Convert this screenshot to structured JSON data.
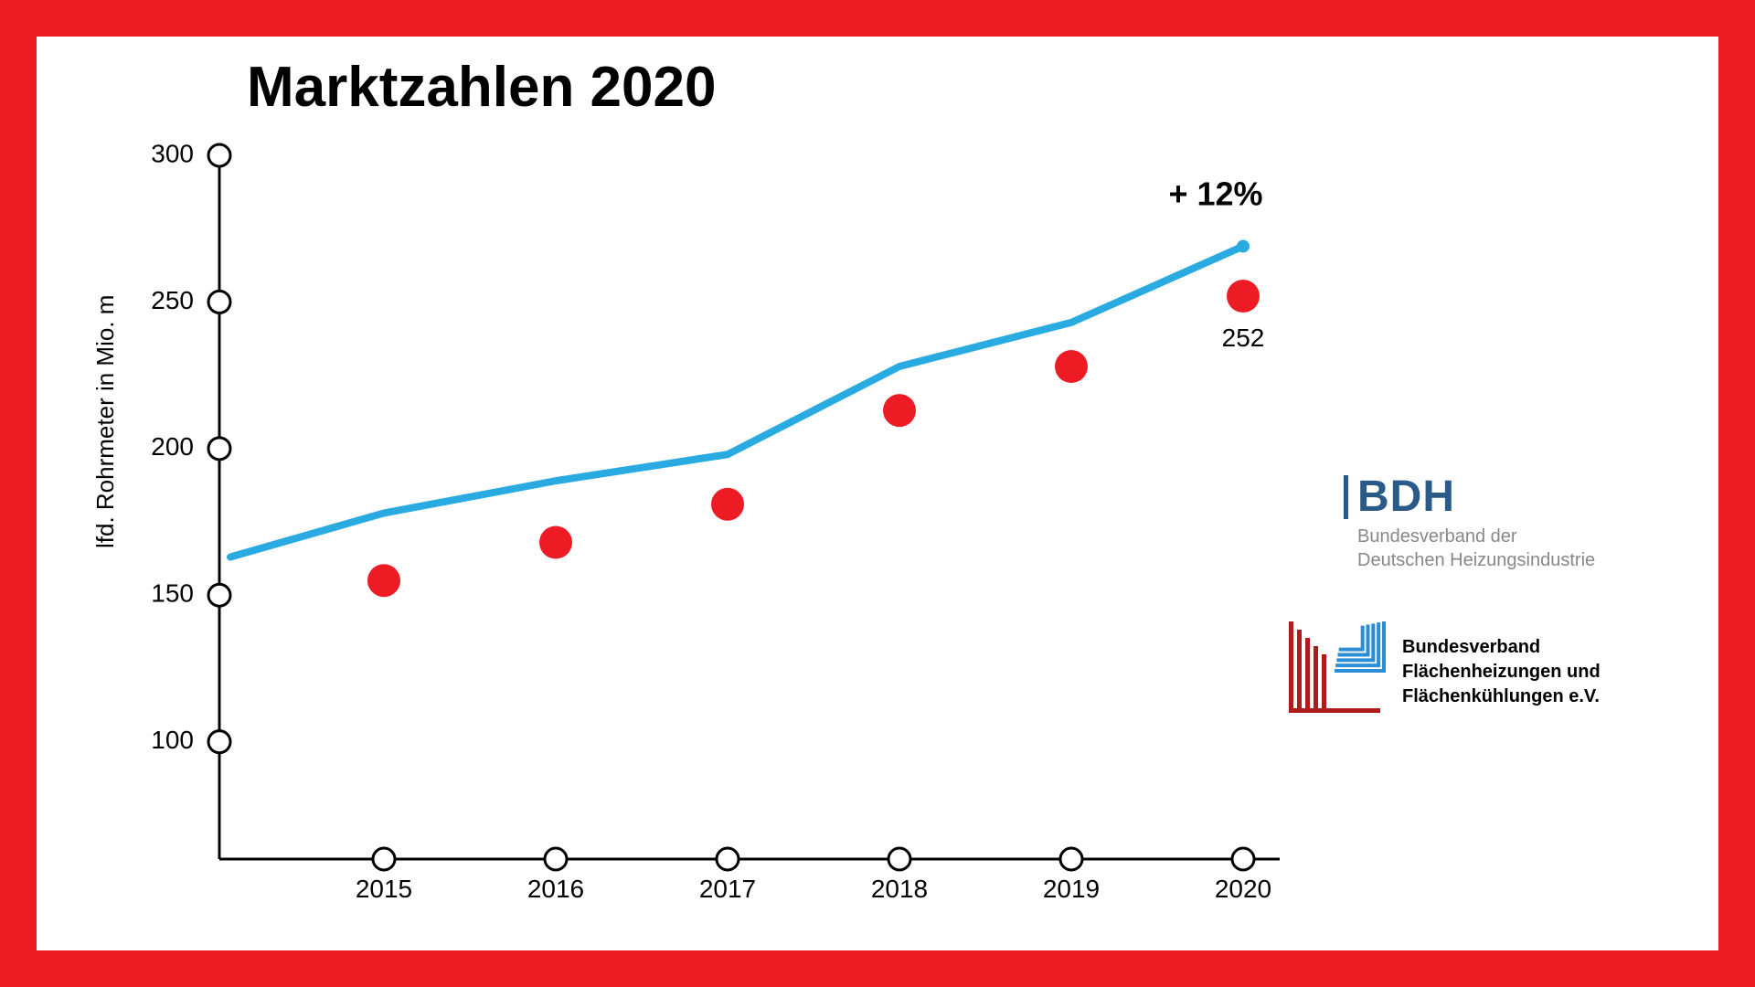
{
  "chart": {
    "type": "line-scatter",
    "title": "Marktzahlen 2020",
    "title_fontsize": 62,
    "title_color": "#000000",
    "ylabel": "lfd. Rohrmeter in Mio. m",
    "label_fontsize": 26,
    "background_color": "#ffffff",
    "frame_color": "#ed1c24",
    "axis_color": "#000000",
    "axis_width": 3,
    "tick_circle_radius": 12,
    "tick_circle_stroke": "#000000",
    "tick_circle_fill": "#ffffff",
    "tick_circle_stroke_width": 3,
    "tick_fontsize": 28,
    "years": [
      "2015",
      "2016",
      "2017",
      "2018",
      "2019",
      "2020"
    ],
    "y_ticks": [
      100,
      150,
      200,
      250,
      300
    ],
    "ylim": [
      60,
      300
    ],
    "scatter_values": [
      155,
      168,
      181,
      213,
      228,
      252
    ],
    "scatter_color": "#ed1c24",
    "scatter_radius": 18,
    "line_values": [
      163,
      178,
      189,
      198,
      228,
      243,
      269
    ],
    "line_color": "#29abe2",
    "line_width": 8,
    "annotation_text": "+ 12%",
    "annotation_fontsize": 36,
    "last_value_label": "252"
  },
  "logos": {
    "bdh": {
      "title": "BDH",
      "subtitle_line1": "Bundesverband der",
      "subtitle_line2": "Deutschen Heizungsindustrie",
      "title_color": "#2a5a88",
      "sub_color": "#888888"
    },
    "bvf": {
      "line1": "Bundesverband",
      "line2": "Flächenheizungen und",
      "line3": "Flächenkühlungen e.V.",
      "red": "#b01c1c",
      "blue": "#2a8ed6"
    }
  }
}
